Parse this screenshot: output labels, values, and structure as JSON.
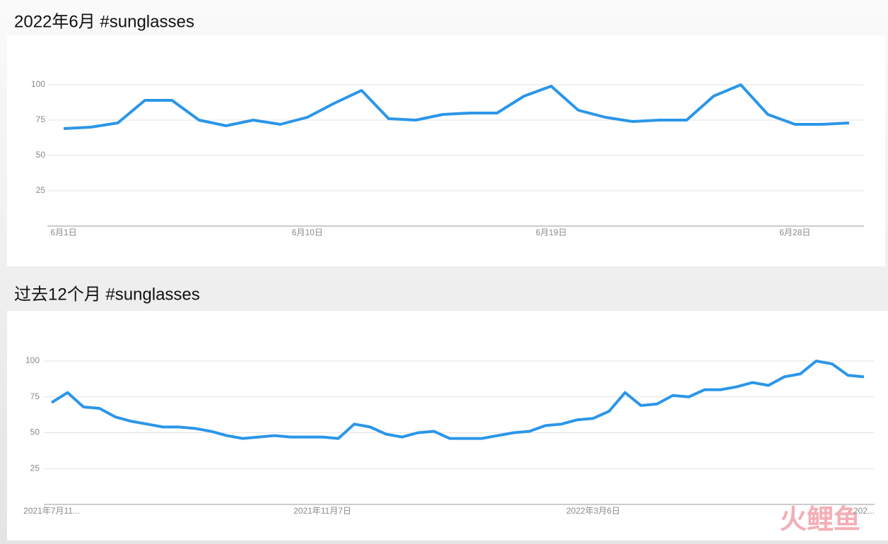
{
  "chart_data": [
    {
      "type": "line",
      "title": "2022年6月 #sunglasses",
      "categories": [
        "6月1日",
        null,
        null,
        null,
        null,
        null,
        null,
        null,
        null,
        "6月10日",
        null,
        null,
        null,
        null,
        null,
        null,
        null,
        null,
        "6月19日",
        null,
        null,
        null,
        null,
        null,
        null,
        null,
        null,
        "6月28日",
        null,
        null
      ],
      "series": [
        {
          "name": "#sunglasses",
          "color": "#2b96e8",
          "values": [
            69,
            70,
            73,
            89,
            89,
            75,
            71,
            75,
            72,
            77,
            87,
            96,
            76,
            75,
            79,
            80,
            80,
            92,
            99,
            82,
            77,
            74,
            75,
            75,
            92,
            100,
            79,
            72,
            72,
            73
          ]
        }
      ],
      "ylim": [
        0,
        100
      ],
      "yticks": [
        25,
        50,
        75,
        100
      ],
      "grid": true
    },
    {
      "type": "line",
      "title": "过去12个月 #sunglasses",
      "categories": [
        "2021年7月11...",
        null,
        null,
        null,
        null,
        null,
        null,
        null,
        null,
        null,
        null,
        null,
        null,
        null,
        null,
        null,
        null,
        "2021年11月7日",
        null,
        null,
        null,
        null,
        null,
        null,
        null,
        null,
        null,
        null,
        null,
        null,
        null,
        null,
        null,
        null,
        "2022年3月6日",
        null,
        null,
        null,
        null,
        null,
        null,
        null,
        null,
        null,
        null,
        null,
        null,
        null,
        null,
        null,
        null,
        "202..."
      ],
      "series": [
        {
          "name": "#sunglasses",
          "color": "#2b96e8",
          "values": [
            71,
            78,
            68,
            67,
            61,
            58,
            56,
            54,
            54,
            53,
            51,
            48,
            46,
            47,
            48,
            47,
            47,
            47,
            46,
            56,
            54,
            49,
            47,
            50,
            51,
            46,
            46,
            46,
            48,
            50,
            51,
            55,
            56,
            59,
            60,
            65,
            78,
            69,
            70,
            76,
            75,
            80,
            80,
            82,
            85,
            83,
            89,
            91,
            100,
            98,
            90,
            89
          ]
        }
      ],
      "ylim": [
        0,
        100
      ],
      "yticks": [
        25,
        50,
        75,
        100
      ],
      "grid": true
    }
  ],
  "watermark": "火鲤鱼"
}
